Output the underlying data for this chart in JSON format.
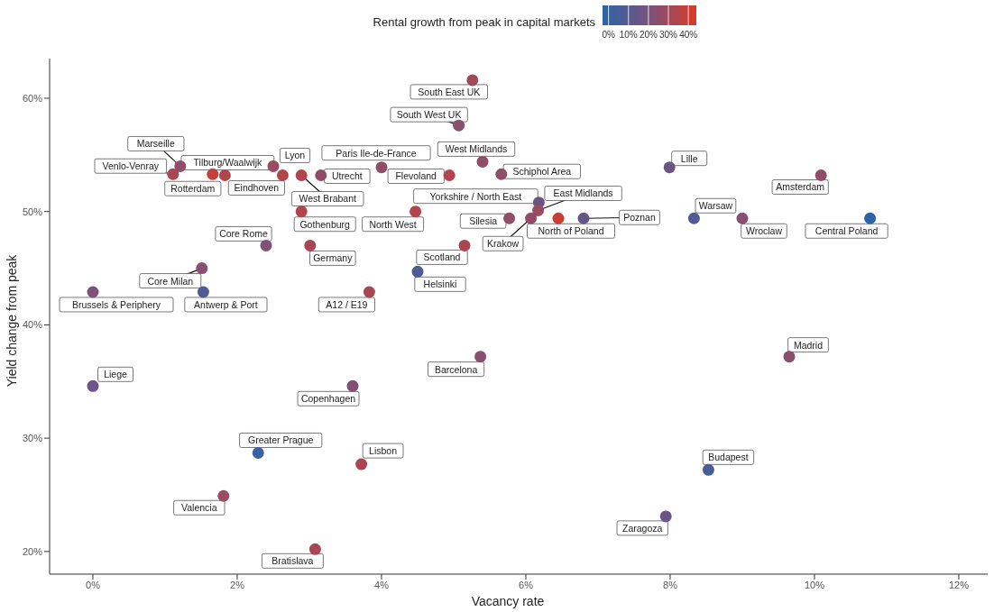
{
  "chart_data": {
    "type": "scatter",
    "clabel": "Rental growth from peak in capital markets",
    "clim": [
      -3,
      44
    ],
    "cticks": [
      {
        "value": 0,
        "label": "0%"
      },
      {
        "value": 10,
        "label": "10%"
      },
      {
        "value": 20,
        "label": "20%"
      },
      {
        "value": 30,
        "label": "30%"
      },
      {
        "value": 40,
        "label": "40%"
      }
    ],
    "xlabel": "Vacancy rate",
    "ylabel": "Yield change from peak",
    "xlim": [
      -0.6,
      12.4
    ],
    "xticks": [
      {
        "value": 0,
        "label": "0%"
      },
      {
        "value": 2,
        "label": "2%"
      },
      {
        "value": 4,
        "label": "4%"
      },
      {
        "value": 6,
        "label": "6%"
      },
      {
        "value": 8,
        "label": "8%"
      },
      {
        "value": 10,
        "label": "10%"
      },
      {
        "value": 12,
        "label": "12%"
      }
    ],
    "ylim": [
      18,
      63.5
    ],
    "yticks": [
      {
        "value": 20,
        "label": "20%"
      },
      {
        "value": 30,
        "label": "30%"
      },
      {
        "value": 40,
        "label": "40%"
      },
      {
        "value": 50,
        "label": "50%"
      },
      {
        "value": 60,
        "label": "60%"
      }
    ],
    "grid": false,
    "x": [
      5.26,
      5.07,
      1.21,
      1.11,
      1.66,
      1.83,
      2.5,
      2.63,
      2.89,
      3.16,
      4.0,
      4.94,
      5.4,
      5.66,
      2.89,
      4.47,
      2.4,
      3.01,
      5.15,
      4.5,
      1.51,
      0,
      1.53,
      3.83,
      5.77,
      6.18,
      6.17,
      6.07,
      6.45,
      6.8,
      7.99,
      10.09,
      8.33,
      9.0,
      10.77,
      9.65,
      5.37,
      0,
      3.6,
      2.29,
      3.72,
      8.53,
      1.81,
      7.94,
      3.08
    ],
    "values": [
      61.6,
      57.6,
      54.0,
      53.3,
      53.3,
      53.2,
      54.0,
      53.2,
      53.2,
      53.2,
      53.9,
      53.2,
      54.4,
      53.3,
      50.0,
      50.0,
      47.0,
      47.0,
      47.0,
      44.7,
      45.0,
      42.9,
      42.9,
      42.9,
      49.4,
      50.8,
      50.1,
      49.4,
      49.4,
      49.4,
      53.9,
      53.2,
      49.4,
      49.4,
      49.4,
      37.2,
      37.2,
      34.6,
      34.6,
      28.7,
      27.7,
      27.2,
      24.9,
      23.1,
      20.2
    ],
    "cvalues": [
      30,
      24,
      26,
      32,
      38,
      34,
      28,
      34,
      34,
      26,
      26,
      34,
      26,
      26,
      34,
      34,
      22,
      32,
      32,
      8,
      24,
      22,
      8,
      32,
      26,
      16,
      28,
      26,
      40,
      14,
      16,
      26,
      8,
      24,
      -2,
      24,
      24,
      16,
      22,
      2,
      32,
      6,
      28,
      16,
      32
    ],
    "annotations": [
      {
        "text": "South East UK",
        "x": 5.26,
        "y": 61.6
      },
      {
        "text": "South West UK",
        "x": 5.07,
        "y": 57.6
      },
      {
        "text": "Marseille",
        "x": 1.21,
        "y": 54.0
      },
      {
        "text": "Venlo-Venray",
        "x": 1.11,
        "y": 53.3
      },
      {
        "text": "Rotterdam",
        "x": 1.66,
        "y": 53.3
      },
      {
        "text": "Tilburg/Waalwijk",
        "x": 1.83,
        "y": 53.2
      },
      {
        "text": "Lyon",
        "x": 2.5,
        "y": 54.0
      },
      {
        "text": "Eindhoven",
        "x": 2.63,
        "y": 53.2
      },
      {
        "text": "West Brabant",
        "x": 2.89,
        "y": 53.2
      },
      {
        "text": "Utrecht",
        "x": 3.16,
        "y": 53.2
      },
      {
        "text": "Paris Ile-de-France",
        "x": 4.0,
        "y": 53.9
      },
      {
        "text": "Flevoland",
        "x": 4.94,
        "y": 53.2
      },
      {
        "text": "West Midlands",
        "x": 5.4,
        "y": 54.4
      },
      {
        "text": "Schiphol Area",
        "x": 5.66,
        "y": 53.3
      },
      {
        "text": "Gothenburg",
        "x": 2.89,
        "y": 50.0
      },
      {
        "text": "North West",
        "x": 4.47,
        "y": 50.0
      },
      {
        "text": "Core Rome",
        "x": 2.4,
        "y": 47.0
      },
      {
        "text": "Germany",
        "x": 3.01,
        "y": 47.0
      },
      {
        "text": "Scotland",
        "x": 5.15,
        "y": 47.0
      },
      {
        "text": "Helsinki",
        "x": 4.5,
        "y": 44.7
      },
      {
        "text": "Core Milan",
        "x": 1.51,
        "y": 45.0
      },
      {
        "text": "Brussels & Periphery",
        "x": 0,
        "y": 42.9
      },
      {
        "text": "Antwerp & Port",
        "x": 1.53,
        "y": 42.9
      },
      {
        "text": "A12 / E19",
        "x": 3.83,
        "y": 42.9
      },
      {
        "text": "Silesia",
        "x": 5.77,
        "y": 49.4
      },
      {
        "text": "Yorkshire / North East",
        "x": 6.18,
        "y": 50.8
      },
      {
        "text": "East Midlands",
        "x": 6.17,
        "y": 50.1
      },
      {
        "text": "Krakow",
        "x": 6.07,
        "y": 49.4
      },
      {
        "text": "North of Poland",
        "x": 6.45,
        "y": 49.4
      },
      {
        "text": "Poznan",
        "x": 6.8,
        "y": 49.4
      },
      {
        "text": "Lille",
        "x": 7.99,
        "y": 53.9
      },
      {
        "text": "Amsterdam",
        "x": 10.09,
        "y": 53.2
      },
      {
        "text": "Warsaw",
        "x": 8.33,
        "y": 49.4
      },
      {
        "text": "Wroclaw",
        "x": 9.0,
        "y": 49.4
      },
      {
        "text": "Central Poland",
        "x": 10.77,
        "y": 49.4
      },
      {
        "text": "Madrid",
        "x": 9.65,
        "y": 37.2
      },
      {
        "text": "Barcelona",
        "x": 5.37,
        "y": 37.2
      },
      {
        "text": "Liege",
        "x": 0,
        "y": 34.6
      },
      {
        "text": "Copenhagen",
        "x": 3.6,
        "y": 34.6
      },
      {
        "text": "Greater Prague",
        "x": 2.29,
        "y": 28.7
      },
      {
        "text": "Lisbon",
        "x": 3.72,
        "y": 27.7
      },
      {
        "text": "Budapest",
        "x": 8.53,
        "y": 27.2
      },
      {
        "text": "Valencia",
        "x": 1.81,
        "y": 24.9
      },
      {
        "text": "Zaragoza",
        "x": 7.94,
        "y": 23.1
      },
      {
        "text": "Bratislava",
        "x": 3.08,
        "y": 20.2
      }
    ]
  }
}
